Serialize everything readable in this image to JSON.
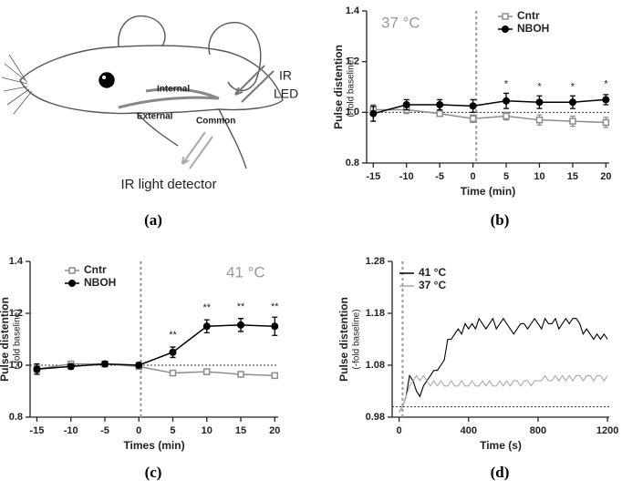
{
  "diagram": {
    "labels": [
      "IR",
      "LED",
      "Internal",
      "External",
      "Common",
      "IR light detector"
    ],
    "caption": "(a)"
  },
  "chart_data": [
    {
      "type": "line",
      "caption": "(b)",
      "annotation": "37 °C",
      "xlabel": "Time (min)",
      "ylabel": [
        "Pulse distention",
        "(-fold baseline)"
      ],
      "x": [
        -15,
        -10,
        -5,
        0,
        5,
        10,
        15,
        20
      ],
      "xlim": [
        -16,
        20.5
      ],
      "xticks": [
        -15,
        -10,
        -5,
        0,
        5,
        10,
        15,
        20
      ],
      "ylim": [
        0.8,
        1.4
      ],
      "yticks": [
        0.8,
        {
          "value": 1,
          "label": "1.0"
        },
        1.2,
        1.4
      ],
      "hline": 1.0,
      "vline": 0.5,
      "series": [
        {
          "name": "Cntr",
          "color": "#8c8c8c",
          "marker": "square",
          "values": [
            1.01,
            1.01,
            0.995,
            0.975,
            0.985,
            0.97,
            0.965,
            0.96
          ],
          "errors": [
            0.02,
            0.015,
            0.01,
            0.015,
            0.015,
            0.02,
            0.02,
            0.02
          ]
        },
        {
          "name": "NBOH",
          "color": "#000000",
          "marker": "circle",
          "values": [
            0.995,
            1.03,
            1.03,
            1.025,
            1.045,
            1.04,
            1.04,
            1.05
          ],
          "errors": [
            0.03,
            0.02,
            0.02,
            0.025,
            0.03,
            0.025,
            0.025,
            0.02
          ]
        }
      ],
      "annotations": [
        {
          "text": "*",
          "x": 5,
          "y": 1.11
        },
        {
          "text": "*",
          "x": 10,
          "y": 1.1
        },
        {
          "text": "*",
          "x": 15,
          "y": 1.1
        },
        {
          "text": "*",
          "x": 20,
          "y": 1.11
        }
      ]
    },
    {
      "type": "line",
      "caption": "(c)",
      "annotation": "41 °C",
      "xlabel": "Times (min)",
      "ylabel": [
        "Pulse distention",
        "(-fold baseline)"
      ],
      "x": [
        -15,
        -10,
        -5,
        0,
        5,
        10,
        15,
        20
      ],
      "xlim": [
        -16,
        20.5
      ],
      "xticks": [
        -15,
        -10,
        -5,
        0,
        5,
        10,
        15,
        20
      ],
      "ylim": [
        0.8,
        1.4
      ],
      "yticks": [
        0.8,
        {
          "value": 1,
          "label": "1.0"
        },
        1.2,
        1.4
      ],
      "hline": 1.0,
      "vline": 0.3,
      "series": [
        {
          "name": "Cntr",
          "color": "#8c8c8c",
          "marker": "square",
          "values": [
            0.985,
            1.005,
            1.005,
            0.995,
            0.97,
            0.975,
            0.965,
            0.96
          ],
          "errors": [
            0.015,
            0.01,
            0.005,
            0.01,
            0.008,
            0.01,
            0.01,
            0.01
          ]
        },
        {
          "name": "NBOH",
          "color": "#000000",
          "marker": "circle",
          "values": [
            0.985,
            0.995,
            1.005,
            1.0,
            1.05,
            1.15,
            1.155,
            1.15
          ],
          "errors": [
            0.02,
            0.01,
            0.01,
            0.01,
            0.02,
            0.025,
            0.025,
            0.035
          ]
        }
      ],
      "annotations": [
        {
          "text": "**",
          "x": 5,
          "y": 1.115
        },
        {
          "text": "**",
          "x": 10,
          "y": 1.22
        },
        {
          "text": "**",
          "x": 15,
          "y": 1.225
        },
        {
          "text": "**",
          "x": 20,
          "y": 1.225
        }
      ]
    },
    {
      "type": "line",
      "caption": "(d)",
      "xlabel": "Time (s)",
      "ylabel": [
        "Pulse distention",
        "(-fold baseline)"
      ],
      "x": [
        0,
        20,
        40,
        60,
        80,
        100,
        120,
        140,
        160,
        180,
        200,
        220,
        240,
        260,
        280,
        300,
        320,
        340,
        360,
        380,
        400,
        420,
        440,
        460,
        480,
        500,
        520,
        540,
        560,
        580,
        600,
        620,
        640,
        660,
        680,
        700,
        720,
        740,
        760,
        780,
        800,
        820,
        840,
        860,
        880,
        900,
        920,
        940,
        960,
        980,
        1000,
        1020,
        1040,
        1060,
        1080,
        1100,
        1120,
        1140,
        1160,
        1180,
        1200
      ],
      "xlim": [
        -40,
        1210
      ],
      "xticks": [
        0,
        400,
        800,
        1200
      ],
      "ylim": [
        0.98,
        1.28
      ],
      "yticks": [
        0.98,
        1.08,
        1.18,
        1.28
      ],
      "hline": 1.0,
      "vline": 20,
      "series": [
        {
          "name": "41 °C",
          "color": "#000000",
          "values": [
            0.99,
            1.0,
            1.02,
            1.06,
            1.05,
            1.03,
            1.02,
            1.04,
            1.05,
            1.06,
            1.07,
            1.07,
            1.08,
            1.09,
            1.13,
            1.13,
            1.14,
            1.15,
            1.14,
            1.16,
            1.15,
            1.16,
            1.15,
            1.17,
            1.16,
            1.15,
            1.16,
            1.17,
            1.15,
            1.16,
            1.17,
            1.16,
            1.15,
            1.14,
            1.15,
            1.16,
            1.16,
            1.15,
            1.16,
            1.17,
            1.16,
            1.15,
            1.17,
            1.16,
            1.16,
            1.17,
            1.15,
            1.16,
            1.17,
            1.16,
            1.17,
            1.17,
            1.16,
            1.14,
            1.15,
            1.14,
            1.13,
            1.14,
            1.13,
            1.14,
            1.13
          ]
        },
        {
          "name": "37 °C",
          "color": "#aaaaaa",
          "values": [
            0.99,
            1.0,
            1.02,
            1.04,
            1.05,
            1.06,
            1.05,
            1.06,
            1.05,
            1.04,
            1.05,
            1.04,
            1.05,
            1.04,
            1.04,
            1.05,
            1.04,
            1.04,
            1.05,
            1.04,
            1.04,
            1.05,
            1.04,
            1.04,
            1.05,
            1.04,
            1.05,
            1.04,
            1.04,
            1.05,
            1.04,
            1.05,
            1.04,
            1.05,
            1.05,
            1.04,
            1.05,
            1.05,
            1.04,
            1.05,
            1.05,
            1.05,
            1.06,
            1.05,
            1.05,
            1.06,
            1.05,
            1.06,
            1.05,
            1.06,
            1.05,
            1.06,
            1.06,
            1.05,
            1.06,
            1.06,
            1.05,
            1.06,
            1.06,
            1.05,
            1.06
          ]
        }
      ]
    }
  ]
}
